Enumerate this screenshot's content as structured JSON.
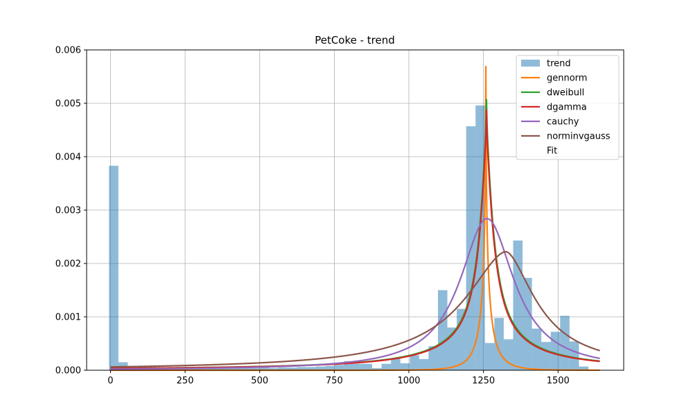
{
  "chart_data": {
    "type": "histogram_with_fit_lines",
    "title": "PetCoke - trend",
    "xlabel": "",
    "ylabel": "",
    "xlim": [
      -80,
      1720
    ],
    "ylim": [
      0,
      0.006
    ],
    "xticks": [
      0,
      250,
      500,
      750,
      1000,
      1250,
      1500
    ],
    "yticks": [
      0.0,
      0.001,
      0.002,
      0.003,
      0.004,
      0.005,
      0.006
    ],
    "ytick_labels": [
      "0.000",
      "0.001",
      "0.002",
      "0.003",
      "0.004",
      "0.005",
      "0.006"
    ],
    "grid": true,
    "legend_position": "upper right",
    "histogram": {
      "name": "trend",
      "color": "#1f77b4",
      "alpha": 0.5,
      "bin_start": -5,
      "bin_width": 31.5,
      "values": [
        0.00383,
        0.00015,
        8e-05,
        7e-05,
        6e-05,
        5e-05,
        4e-05,
        4e-05,
        4e-05,
        4e-05,
        5e-05,
        4e-05,
        5e-05,
        4e-05,
        5e-05,
        4e-05,
        5e-05,
        4e-05,
        5e-05,
        5e-05,
        6e-05,
        6e-05,
        7e-05,
        8e-05,
        0.0001,
        0.00017,
        0.00012,
        0.00012,
        4e-05,
        0.00012,
        0.00022,
        0.00013,
        0.00028,
        0.00021,
        0.00045,
        0.0015,
        0.0008,
        0.00115,
        0.00457,
        0.00496,
        0.00051,
        0.00098,
        0.00058,
        0.00243,
        0.00173,
        0.00078,
        0.00053,
        0.00072,
        0.00102,
        0.00054,
        7e-05
      ]
    },
    "series": [
      {
        "name": "gennorm",
        "color": "#ff7f0e",
        "dist": "gennorm",
        "loc": 1258,
        "scale": 55,
        "beta": 0.55,
        "peak": 0.0057
      },
      {
        "name": "dweibull",
        "color": "#2ca02c",
        "dist": "laplace_like",
        "loc": 1260,
        "peak": 0.00508
      },
      {
        "name": "dgamma",
        "color": "#d62728",
        "dist": "laplace_like",
        "loc": 1260,
        "peak": 0.00488
      },
      {
        "name": "cauchy",
        "color": "#9467bd",
        "dist": "cauchy",
        "loc": 1262,
        "scale": 110,
        "peak": 0.00284
      },
      {
        "name": "norminvgauss",
        "color": "#8c564b",
        "dist": "skewed",
        "loc": 1325,
        "peak": 0.00222
      }
    ],
    "legend": [
      {
        "label": "trend",
        "kind": "patch",
        "color": "#1f77b4"
      },
      {
        "label": "gennorm",
        "kind": "line",
        "color": "#ff7f0e"
      },
      {
        "label": "dweibull",
        "kind": "line",
        "color": "#2ca02c"
      },
      {
        "label": "dgamma",
        "kind": "line",
        "color": "#d62728"
      },
      {
        "label": "cauchy",
        "kind": "line",
        "color": "#9467bd"
      },
      {
        "label": "norminvgauss",
        "kind": "line",
        "color": "#8c564b"
      },
      {
        "label": "Fit",
        "kind": "none",
        "color": ""
      }
    ]
  }
}
